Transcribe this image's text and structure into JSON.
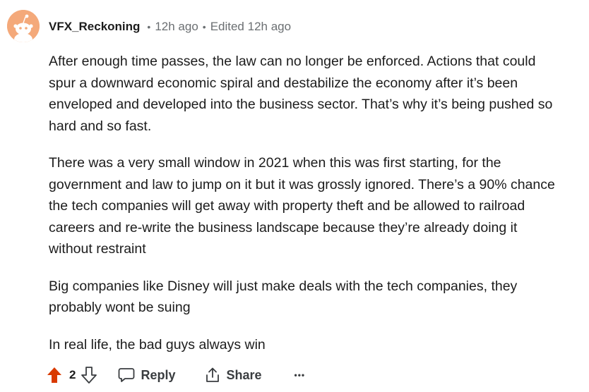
{
  "comment": {
    "author": "VFX_Reckoning",
    "posted": "12h ago",
    "edited": "Edited 12h ago",
    "separator": "•",
    "paragraphs": [
      "After enough time passes, the law can no longer be enforced. Actions that could spur a downward economic spiral and destabilize the economy after it’s been enveloped and developed into the business sector. That’s why it’s being pushed so hard and so fast.",
      "There was a very small window in 2021 when this was first starting, for the government and law to jump on it but it was grossly ignored. There’s a 90% chance the tech companies will get away with property theft and be allowed to railroad careers and re-write the business landscape because they’re already doing it without restraint",
      "Big companies like Disney will just make deals with the tech companies, they probably wont be suing",
      "In real life, the bad guys always win"
    ]
  },
  "actions": {
    "score": "2",
    "reply_label": "Reply",
    "share_label": "Share",
    "more_label": "•••",
    "upvote_active": true,
    "upvote_color": "#d93a00"
  },
  "icons": {
    "avatar": "snoo-avatar-icon",
    "upvote": "upvote-arrow-icon",
    "downvote": "downvote-arrow-icon",
    "reply": "speech-bubble-icon",
    "share": "share-icon",
    "more": "ellipsis-icon"
  },
  "colors": {
    "avatar_bg": "#f4a97a",
    "text": "#1c1c1c",
    "meta": "#6b6f72",
    "action_text": "#3a3d40"
  }
}
